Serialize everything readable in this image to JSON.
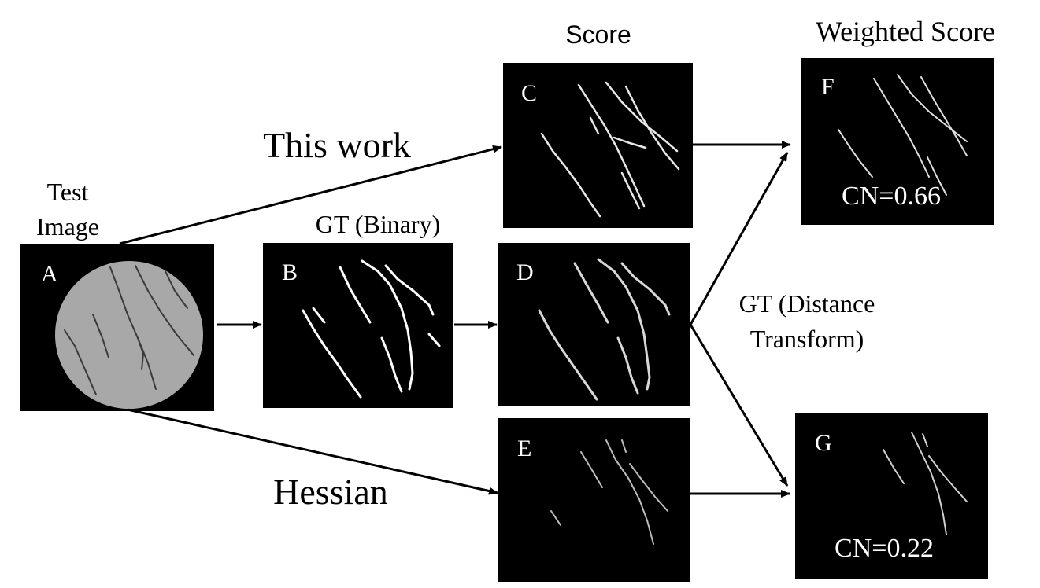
{
  "labels": {
    "score": "Score",
    "weighted_score": "Weighted Score",
    "this_work": "This work",
    "hessian": "Hessian",
    "test": "Test",
    "image": "Image",
    "gt_binary": "GT (Binary)",
    "gt_dt_line1": "GT (Distance",
    "gt_dt_line2": "Transform)"
  },
  "panels": {
    "a": {
      "letter": "A"
    },
    "b": {
      "letter": "B"
    },
    "c": {
      "letter": "C"
    },
    "d": {
      "letter": "D"
    },
    "e": {
      "letter": "E"
    },
    "f": {
      "letter": "F",
      "cn": "CN=0.66"
    },
    "g": {
      "letter": "G",
      "cn": "CN=0.22"
    }
  },
  "colors": {
    "panel_bg": "#000000",
    "sample_disk": "#a8a8a8",
    "crack": "#ffffff",
    "crack_dark": "#3a3a3a"
  }
}
